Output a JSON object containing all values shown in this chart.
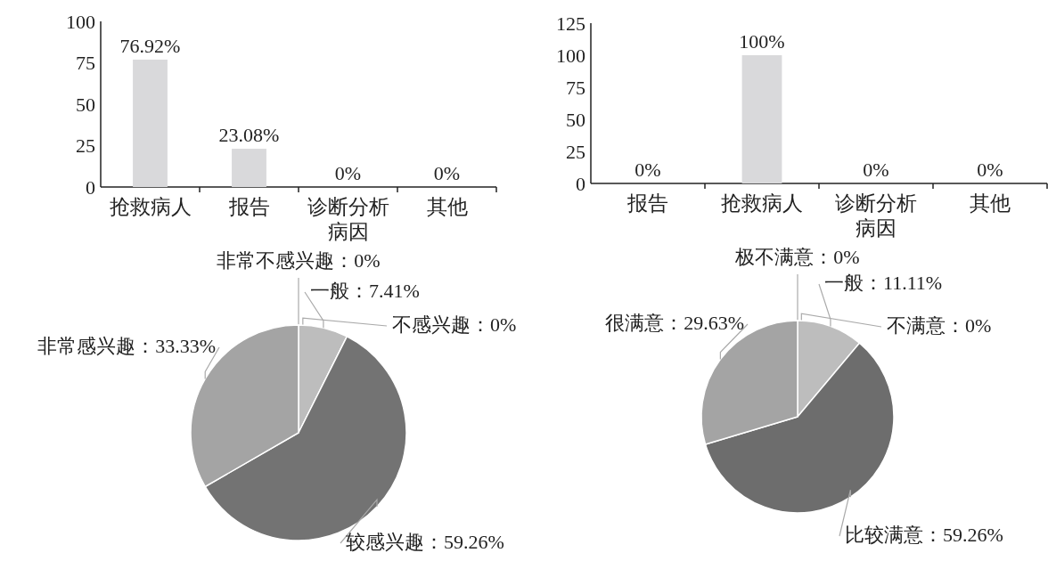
{
  "chart_data": [
    {
      "type": "bar",
      "categories": [
        "抢救病人",
        "报告",
        "诊断分析病因",
        "其他"
      ],
      "values": [
        76.92,
        23.08,
        0,
        0
      ],
      "color": "#d9d9db",
      "ylim": [
        0,
        100
      ],
      "yticks": [
        0,
        25,
        50,
        75,
        100
      ],
      "value_labels": [
        "76.92%",
        "23.08%",
        "0%",
        "0%"
      ]
    },
    {
      "type": "bar",
      "categories": [
        "报告",
        "抢救病人",
        "诊断分析病因",
        "其他"
      ],
      "values": [
        0,
        100,
        0,
        0
      ],
      "color": "#d9d9db",
      "ylim": [
        0,
        125
      ],
      "yticks": [
        0,
        25,
        50,
        75,
        100,
        125
      ],
      "value_labels": [
        "0%",
        "100%",
        "0%",
        "0%"
      ]
    },
    {
      "type": "pie",
      "categories": [
        "非常不感兴趣",
        "不感兴趣",
        "一般",
        "较感兴趣",
        "非常感兴趣"
      ],
      "values": [
        0,
        0,
        7.41,
        59.26,
        33.33
      ],
      "colors": [
        null,
        null,
        "#bdbdbd",
        "#737373",
        "#a4a4a4"
      ],
      "value_labels": [
        "：0%",
        "：0%",
        "：7.41%",
        "：59.26%",
        "：33.33%"
      ]
    },
    {
      "type": "pie",
      "categories": [
        "极不满意",
        "不满意",
        "一般",
        "比较满意",
        "很满意"
      ],
      "values": [
        0,
        0,
        11.11,
        59.26,
        29.63
      ],
      "colors": [
        null,
        null,
        "#bdbdbd",
        "#6d6d6d",
        "#a4a4a4"
      ],
      "value_labels": [
        "：0%",
        "：0%",
        "：11.11%",
        "：59.26%",
        "：29.63%"
      ]
    }
  ]
}
